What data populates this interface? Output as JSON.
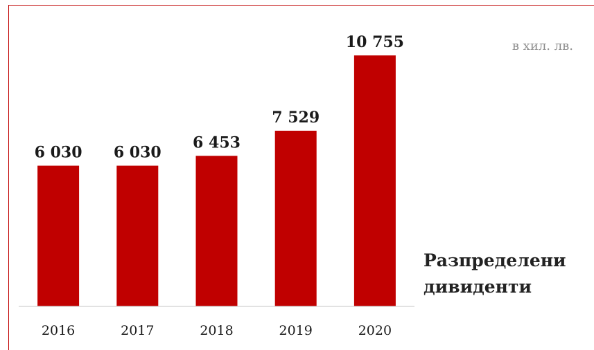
{
  "unit_label": "в хил. лв.",
  "caption": [
    "Разпределени",
    "дивиденти"
  ],
  "chart_data": {
    "type": "bar",
    "categories": [
      "2016",
      "2017",
      "2018",
      "2019",
      "2020"
    ],
    "values": [
      6030,
      6030,
      6453,
      7529,
      10755
    ],
    "value_labels": [
      "6 030",
      "6 030",
      "6 453",
      "7 529",
      "10 755"
    ],
    "title": "",
    "xlabel": "",
    "ylabel": "",
    "ylim": [
      0,
      11500
    ],
    "grid": false,
    "legend": "none",
    "colors": {
      "bar": "#c00000",
      "frame": "#c00000"
    }
  }
}
